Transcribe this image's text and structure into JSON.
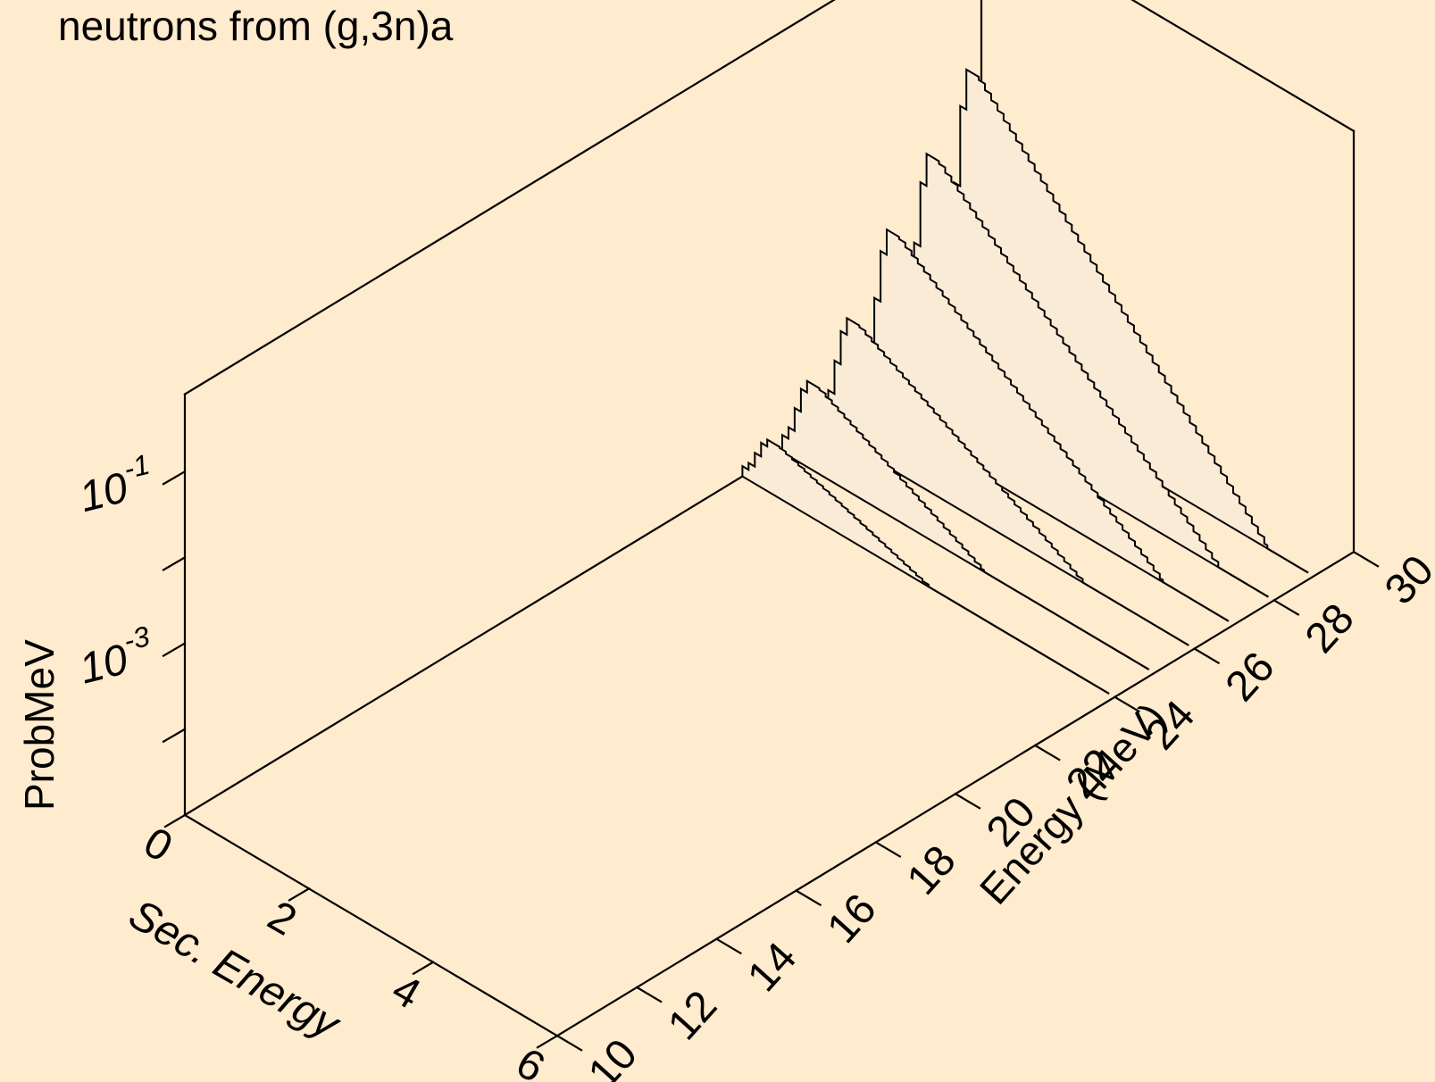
{
  "chart_data": {
    "type": "area",
    "title": "neutrons from (g,3n)a",
    "xlabel": "Sec. Energy",
    "ylabel": "Energy (MeV)",
    "zlabel": "ProbMeV",
    "x_ticks": [
      "0",
      "2",
      "4",
      "6"
    ],
    "y_ticks": [
      "10",
      "12",
      "14",
      "16",
      "18",
      "20",
      "22",
      "24",
      "26",
      "28",
      "30"
    ],
    "z_ticks": [
      {
        "base": "10",
        "exp": "-3"
      },
      {
        "base": "10",
        "exp": "-1"
      }
    ],
    "xlim": [
      0,
      6
    ],
    "ylim": [
      10,
      30
    ],
    "zscale": "log",
    "fill_color": "#FAEBD7",
    "background_color": "#FFEBCD",
    "series": [
      {
        "energy": 24.0,
        "peak": 0.6,
        "x_end": 3.0
      },
      {
        "energy": 25.0,
        "peak": 1.0,
        "x_end": 3.25
      },
      {
        "energy": 26.0,
        "peak": 1.45,
        "x_end": 4.2
      },
      {
        "energy": 27.0,
        "peak": 2.2,
        "x_end": 4.85
      },
      {
        "energy": 28.0,
        "peak": 2.8,
        "x_end": 5.1
      },
      {
        "energy": 29.0,
        "peak": 3.5,
        "x_end": 5.25
      }
    ]
  }
}
